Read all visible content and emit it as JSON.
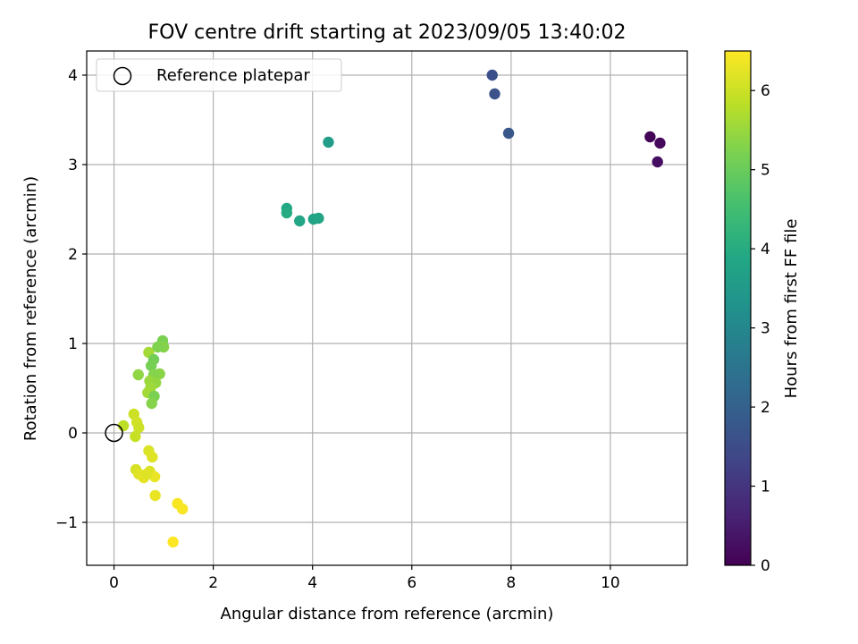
{
  "chart_data": {
    "type": "scatter",
    "title": "FOV centre drift starting at 2023/09/05 13:40:02",
    "xlabel": "Angular distance from reference (arcmin)",
    "ylabel": "Rotation from reference (arcmin)",
    "xlim": [
      -0.55,
      11.55
    ],
    "ylim": [
      -1.48,
      4.27
    ],
    "xticks": [
      0,
      2,
      4,
      6,
      8,
      10
    ],
    "yticks": [
      -1,
      0,
      1,
      2,
      3,
      4
    ],
    "grid": true,
    "legend": {
      "placement": "top-left",
      "entries": [
        "Reference platepar"
      ]
    },
    "reference": {
      "x": 0,
      "y": 0
    },
    "colorbar": {
      "label": "Hours from first FF file",
      "colormap": "viridis",
      "range": [
        0,
        6.5
      ],
      "ticks": [
        0,
        1,
        2,
        3,
        4,
        5,
        6
      ]
    },
    "points": [
      {
        "x": 10.8,
        "y": 3.31,
        "c": 0.05
      },
      {
        "x": 11.0,
        "y": 3.24,
        "c": 0.15
      },
      {
        "x": 10.95,
        "y": 3.03,
        "c": 0.25
      },
      {
        "x": 7.62,
        "y": 4.0,
        "c": 1.55
      },
      {
        "x": 7.67,
        "y": 3.79,
        "c": 1.65
      },
      {
        "x": 7.95,
        "y": 3.35,
        "c": 1.75
      },
      {
        "x": 4.32,
        "y": 3.25,
        "c": 3.6
      },
      {
        "x": 3.48,
        "y": 2.51,
        "c": 3.9
      },
      {
        "x": 3.48,
        "y": 2.46,
        "c": 3.95
      },
      {
        "x": 3.74,
        "y": 2.37,
        "c": 3.85
      },
      {
        "x": 4.02,
        "y": 2.39,
        "c": 3.75
      },
      {
        "x": 4.12,
        "y": 2.4,
        "c": 3.8
      },
      {
        "x": 0.98,
        "y": 1.03,
        "c": 5.2
      },
      {
        "x": 1.0,
        "y": 0.96,
        "c": 5.3
      },
      {
        "x": 0.88,
        "y": 0.96,
        "c": 5.25
      },
      {
        "x": 0.7,
        "y": 0.9,
        "c": 5.6
      },
      {
        "x": 0.8,
        "y": 0.82,
        "c": 5.1
      },
      {
        "x": 0.75,
        "y": 0.75,
        "c": 5.15
      },
      {
        "x": 0.92,
        "y": 0.66,
        "c": 5.35
      },
      {
        "x": 0.8,
        "y": 0.65,
        "c": 5.3
      },
      {
        "x": 0.49,
        "y": 0.65,
        "c": 5.4
      },
      {
        "x": 0.72,
        "y": 0.58,
        "c": 5.5
      },
      {
        "x": 0.84,
        "y": 0.56,
        "c": 5.45
      },
      {
        "x": 0.74,
        "y": 0.51,
        "c": 5.55
      },
      {
        "x": 0.68,
        "y": 0.45,
        "c": 5.6
      },
      {
        "x": 0.81,
        "y": 0.41,
        "c": 5.2
      },
      {
        "x": 0.76,
        "y": 0.33,
        "c": 5.3
      },
      {
        "x": 0.4,
        "y": 0.21,
        "c": 6.0
      },
      {
        "x": 0.46,
        "y": 0.12,
        "c": 6.05
      },
      {
        "x": 0.19,
        "y": 0.08,
        "c": 5.85
      },
      {
        "x": 0.5,
        "y": 0.06,
        "c": 6.0
      },
      {
        "x": 0.43,
        "y": -0.04,
        "c": 5.95
      },
      {
        "x": 0.7,
        "y": -0.2,
        "c": 6.15
      },
      {
        "x": 0.77,
        "y": -0.27,
        "c": 6.2
      },
      {
        "x": 0.44,
        "y": -0.41,
        "c": 6.1
      },
      {
        "x": 0.72,
        "y": -0.43,
        "c": 6.15
      },
      {
        "x": 0.5,
        "y": -0.46,
        "c": 6.2
      },
      {
        "x": 0.6,
        "y": -0.5,
        "c": 6.25
      },
      {
        "x": 0.82,
        "y": -0.49,
        "c": 6.3
      },
      {
        "x": 0.66,
        "y": -0.46,
        "c": 6.2
      },
      {
        "x": 0.83,
        "y": -0.7,
        "c": 6.3
      },
      {
        "x": 1.28,
        "y": -0.79,
        "c": 6.45
      },
      {
        "x": 1.38,
        "y": -0.85,
        "c": 6.45
      },
      {
        "x": 1.19,
        "y": -1.22,
        "c": 6.5
      }
    ]
  }
}
